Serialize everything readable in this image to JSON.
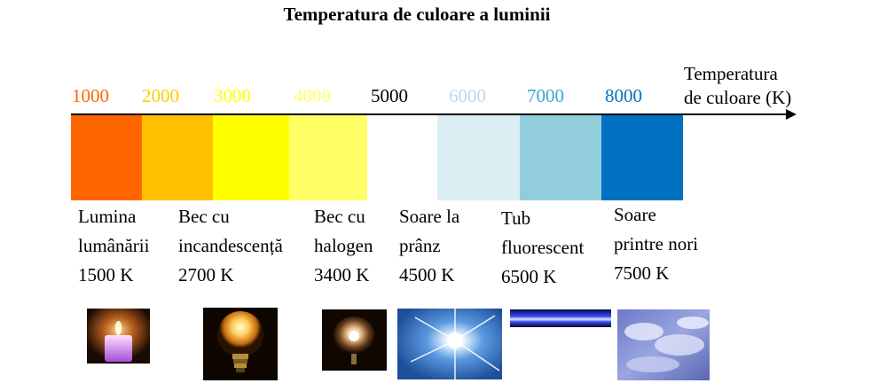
{
  "title": "Temperatura de culoare a luminii",
  "axis": {
    "label_line1": "Temperatura",
    "label_line2": "de culoare (K)"
  },
  "ticks": [
    {
      "value": "1000",
      "color": "#ff6600"
    },
    {
      "value": "2000",
      "color": "#ffcc00"
    },
    {
      "value": "3000",
      "color": "#ffff00"
    },
    {
      "value": "4000",
      "color": "#ffff66"
    },
    {
      "value": "5000",
      "color": "#000000"
    },
    {
      "value": "6000",
      "color": "#b5dcec"
    },
    {
      "value": "7000",
      "color": "#3aa4d4"
    },
    {
      "value": "8000",
      "color": "#0070c0"
    }
  ],
  "swatches": [
    {
      "color": "#ff6600"
    },
    {
      "color": "#ffc000"
    },
    {
      "color": "#ffff00"
    },
    {
      "color": "#ffff66"
    },
    {
      "color": "#ffffff"
    },
    {
      "color": "#daeef3"
    },
    {
      "color": "#92cddc"
    },
    {
      "color": "#0070c0"
    }
  ],
  "sources": [
    {
      "line1": "Lumina",
      "line2": "lumânării",
      "temp": "1500 K",
      "icon": "candle-icon"
    },
    {
      "line1": "Bec cu",
      "line2": "incandescență",
      "temp": "2700 K",
      "icon": "incandescent-bulb-icon"
    },
    {
      "line1": "Bec cu",
      "line2": "halogen",
      "temp": "3400 K",
      "icon": "halogen-bulb-icon"
    },
    {
      "line1": "Soare la",
      "line2": "prânz",
      "temp": "4500 K",
      "icon": "noon-sun-icon"
    },
    {
      "line1": "Tub",
      "line2": "fluorescent",
      "temp": "6500 K",
      "icon": "fluorescent-tube-icon"
    },
    {
      "line1": "Soare",
      "line2": "printre nori",
      "temp": "7500 K",
      "icon": "cloudy-sky-icon"
    }
  ]
}
